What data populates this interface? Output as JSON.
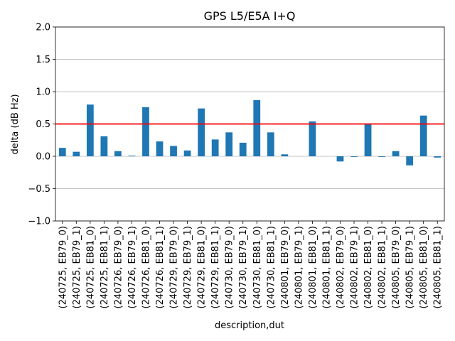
{
  "chart_data": {
    "type": "bar",
    "title": "GPS L5/E5A I+Q",
    "xlabel": "description,dut",
    "ylabel": "delta (dB Hz)",
    "ylim": [
      -1.0,
      2.0
    ],
    "yticks": [
      -1.0,
      -0.5,
      0.0,
      0.5,
      1.0,
      1.5,
      2.0
    ],
    "ytick_labels": [
      "−1.0",
      "−0.5",
      "0.0",
      "0.5",
      "1.0",
      "1.5",
      "2.0"
    ],
    "grid": "horizontal",
    "bar_color": "#1f77b4",
    "reference_line": {
      "y": 0.5,
      "color": "#ff0000"
    },
    "categories": [
      "(240725, EB79_0)",
      "(240725, EB79_1)",
      "(240725, EB81_0)",
      "(240725, EB81_1)",
      "(240726, EB79_0)",
      "(240726, EB79_1)",
      "(240726, EB81_0)",
      "(240726, EB81_1)",
      "(240729, EB79_0)",
      "(240729, EB79_1)",
      "(240729, EB81_0)",
      "(240729, EB81_1)",
      "(240730, EB79_0)",
      "(240730, EB79_1)",
      "(240730, EB81_0)",
      "(240730, EB81_1)",
      "(240801, EB79_0)",
      "(240801, EB79_1)",
      "(240801, EB81_0)",
      "(240801, EB81_1)",
      "(240802, EB79_0)",
      "(240802, EB79_1)",
      "(240802, EB81_0)",
      "(240802, EB81_1)",
      "(240805, EB79_0)",
      "(240805, EB79_1)",
      "(240805, EB81_0)",
      "(240805, EB81_1)"
    ],
    "values": [
      0.13,
      0.07,
      0.8,
      0.31,
      0.08,
      0.01,
      0.76,
      0.23,
      0.16,
      0.09,
      0.74,
      0.26,
      0.37,
      0.21,
      0.87,
      0.37,
      0.03,
      0.0,
      0.54,
      0.0,
      -0.08,
      -0.01,
      0.5,
      -0.01,
      0.08,
      -0.14,
      0.63,
      -0.02
    ]
  }
}
